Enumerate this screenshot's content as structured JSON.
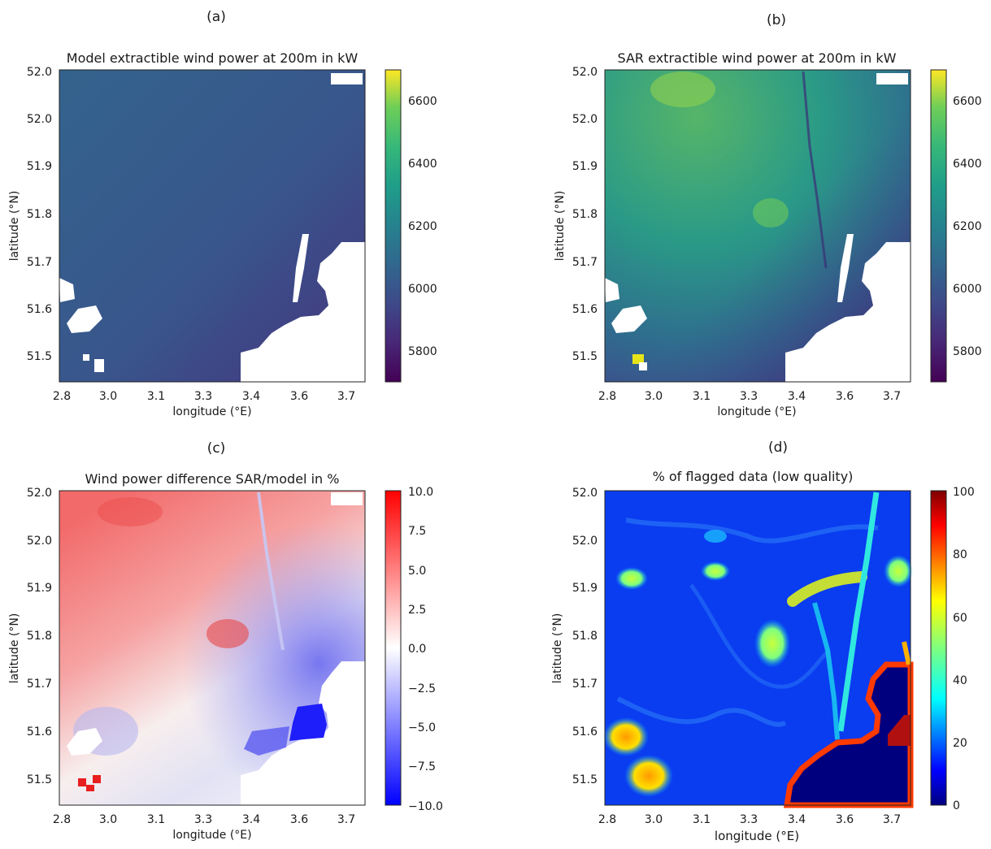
{
  "panels": [
    {
      "label": "(a)",
      "title": "Model extractible wind power at 200m in kW",
      "xlabel": "longitude (°E)",
      "ylabel": "latitude (°N)",
      "xticks": [
        "2.8",
        "3.0",
        "3.1",
        "3.3",
        "3.4",
        "3.6",
        "3.7"
      ],
      "yticks": [
        "52.0",
        "52.0",
        "51.9",
        "51.8",
        "51.7",
        "51.6",
        "51.5"
      ],
      "colorbar_ticks": [
        "6600",
        "6400",
        "6200",
        "6000",
        "5800"
      ]
    },
    {
      "label": "(b)",
      "title": "SAR extractible wind power at 200m in kW",
      "xlabel": "longitude (°E)",
      "ylabel": "latitude (°N)",
      "xticks": [
        "2.8",
        "3.0",
        "3.1",
        "3.3",
        "3.4",
        "3.6",
        "3.7"
      ],
      "yticks": [
        "52.0",
        "52.0",
        "51.9",
        "51.8",
        "51.7",
        "51.6",
        "51.5"
      ],
      "colorbar_ticks": [
        "6600",
        "6400",
        "6200",
        "6000",
        "5800"
      ]
    },
    {
      "label": "(c)",
      "title": "Wind power difference SAR/model in %",
      "xlabel": "longitude (°E)",
      "ylabel": "latitude (°N)",
      "xticks": [
        "2.8",
        "3.0",
        "3.1",
        "3.3",
        "3.4",
        "3.6",
        "3.7"
      ],
      "yticks": [
        "52.0",
        "52.0",
        "51.9",
        "51.8",
        "51.7",
        "51.6",
        "51.5"
      ],
      "colorbar_ticks": [
        "10.0",
        "7.5",
        "5.0",
        "2.5",
        "0.0",
        "−2.5",
        "−5.0",
        "−7.5",
        "−10.0"
      ]
    },
    {
      "label": "(d)",
      "title": "% of flagged data (low quality)",
      "xlabel": "longitude (°E)",
      "ylabel": "latitude (°N)",
      "xticks": [
        "2.8",
        "3.0",
        "3.1",
        "3.3",
        "3.4",
        "3.6",
        "3.7"
      ],
      "yticks": [
        "52.0",
        "52.0",
        "51.9",
        "51.8",
        "51.7",
        "51.6",
        "51.5"
      ],
      "colorbar_ticks": [
        "100",
        "80",
        "60",
        "40",
        "20",
        "0"
      ]
    }
  ],
  "chart_data": [
    {
      "type": "heatmap",
      "title": "Model extractible wind power at 200m in kW",
      "xlabel": "longitude (°E)",
      "ylabel": "latitude (°N)",
      "xlim": [
        2.79,
        3.74
      ],
      "ylim": [
        51.44,
        52.07
      ],
      "colorbar": {
        "label": "kW",
        "range": [
          5700,
          6700
        ],
        "colormap": "viridis"
      },
      "description_values": {
        "field_typical": 6000,
        "field_trend": "decreasing toward south-east"
      }
    },
    {
      "type": "heatmap",
      "title": "SAR extractible wind power at 200m in kW",
      "xlabel": "longitude (°E)",
      "ylabel": "latitude (°N)",
      "xlim": [
        2.79,
        3.74
      ],
      "ylim": [
        51.44,
        52.07
      ],
      "colorbar": {
        "label": "kW",
        "range": [
          5700,
          6700
        ],
        "colormap": "viridis"
      }
    },
    {
      "type": "heatmap",
      "title": "Wind power difference SAR/model in %",
      "xlabel": "longitude (°E)",
      "ylabel": "latitude (°N)",
      "xlim": [
        2.79,
        3.74
      ],
      "ylim": [
        51.44,
        52.07
      ],
      "colorbar": {
        "label": "%",
        "range": [
          -10,
          10
        ],
        "colormap": "bwr"
      }
    },
    {
      "type": "heatmap",
      "title": "% of flagged data (low quality)",
      "xlabel": "longitude (°E)",
      "ylabel": "latitude (°N)",
      "xlim": [
        2.79,
        3.74
      ],
      "ylim": [
        51.44,
        52.07
      ],
      "colorbar": {
        "label": "%",
        "range": [
          0,
          100
        ],
        "colormap": "jet"
      }
    }
  ],
  "colors": {
    "viridis_low": "#440154",
    "viridis_mid": "#21918c",
    "viridis_high": "#fde725",
    "bwr_low": "#0000ff",
    "bwr_high": "#ff0000",
    "jet_low": "#00007f",
    "jet_high": "#7f0000"
  }
}
